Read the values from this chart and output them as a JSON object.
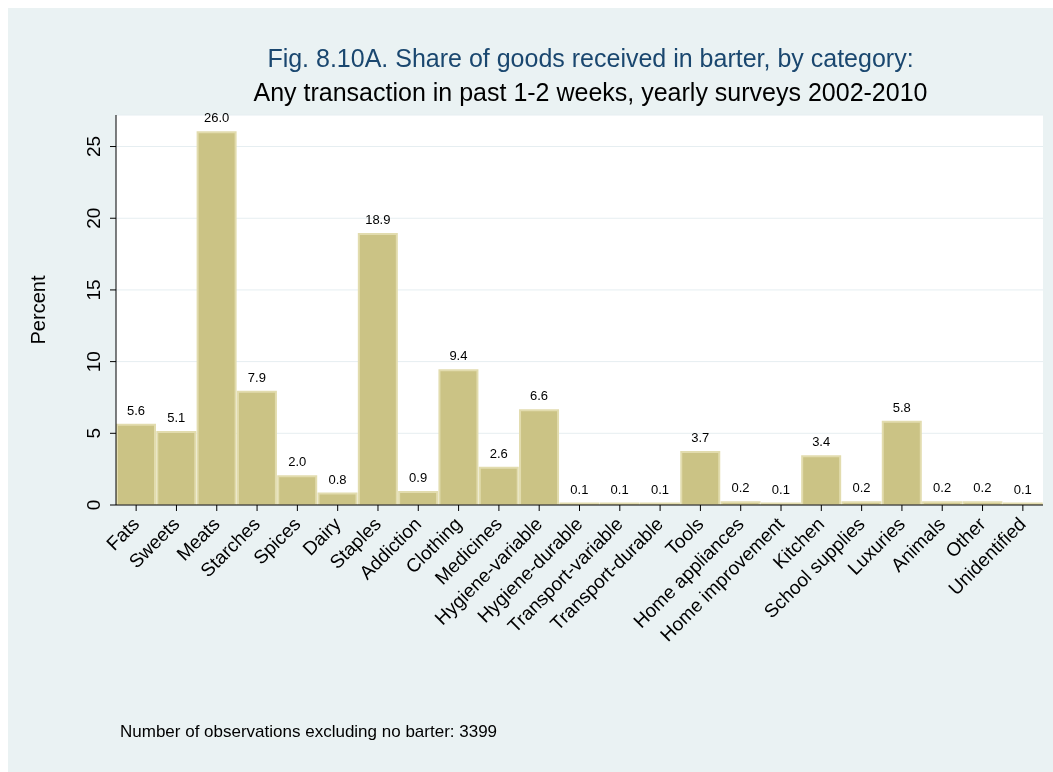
{
  "chart_data": {
    "type": "bar",
    "title": "Fig. 8.10A. Share of goods received in barter, by category:",
    "subtitle": "Any transaction in past 1-2 weeks, yearly surveys 2002-2010",
    "ylabel": "Percent",
    "categories": [
      "Fats",
      "Sweets",
      "Meats",
      "Starches",
      "Spices",
      "Dairy",
      "Staples",
      "Addiction",
      "Clothing",
      "Medicines",
      "Hygiene-variable",
      "Hygiene-durable",
      "Transport-variable",
      "Transport-durable",
      "Tools",
      "Home appliances",
      "Home improvement",
      "Kitchen",
      "School supplies",
      "Luxuries",
      "Animals",
      "Other",
      "Unidentified"
    ],
    "values": [
      5.6,
      5.1,
      26.0,
      7.9,
      2.0,
      0.8,
      18.9,
      0.9,
      9.4,
      2.6,
      6.6,
      0.1,
      0.1,
      0.1,
      3.7,
      0.2,
      0.1,
      3.4,
      0.2,
      5.8,
      0.2,
      0.2,
      0.1
    ],
    "value_labels": [
      "5.6",
      "5.1",
      "26.0",
      "7.9",
      "2.0",
      "0.8",
      "18.9",
      "0.9",
      "9.4",
      "2.6",
      "6.6",
      "0.1",
      "0.1",
      "0.1",
      "3.7",
      "0.2",
      "0.1",
      "3.4",
      "0.2",
      "5.8",
      "0.2",
      "0.2",
      "0.1"
    ],
    "color": "#cbc385",
    "ylim": [
      0,
      27.2
    ],
    "yticks": [
      0,
      5,
      10,
      15,
      20,
      25
    ],
    "grid": "y",
    "annotations": [
      "Number of observations excluding no barter: 3399"
    ]
  }
}
